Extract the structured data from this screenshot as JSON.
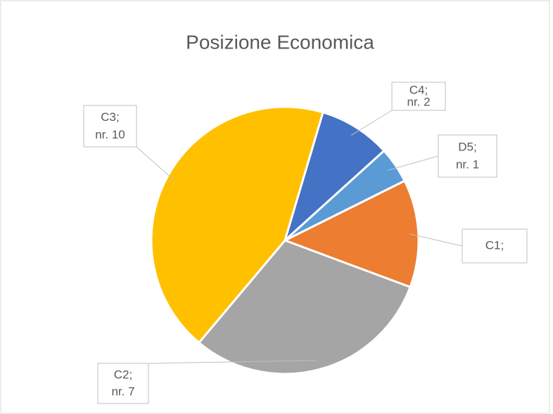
{
  "chart_data": {
    "type": "pie",
    "title": "Posizione Economica",
    "categories": [
      "C1;",
      "C2;",
      "C3;",
      "C4;",
      "D5;"
    ],
    "values": [
      3,
      7,
      10,
      2,
      1
    ],
    "value_labels": [
      null,
      "nr. 7",
      "nr. 10",
      "nr. 2",
      "nr. 1"
    ],
    "colors": [
      "#ed7d31",
      "#a5a5a5",
      "#ffc000",
      "#4472c4",
      "#5b9bd5"
    ]
  }
}
